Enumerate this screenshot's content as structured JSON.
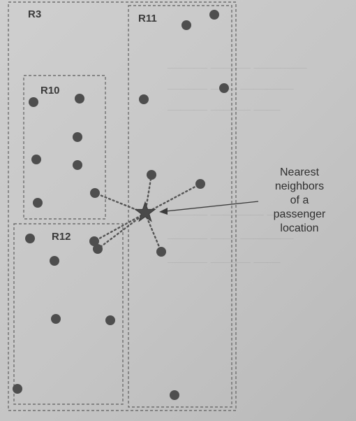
{
  "regions": [
    {
      "id": "R3",
      "label": "R3"
    },
    {
      "id": "R10",
      "label": "R10"
    },
    {
      "id": "R11",
      "label": "R11"
    },
    {
      "id": "R12",
      "label": "R12"
    }
  ],
  "annotation": {
    "lines": [
      "Nearest",
      "neighbors",
      "of a",
      "passenger",
      "location"
    ]
  },
  "colors": {
    "point": "#4e4e4e",
    "star": "#4a4a4a",
    "dashed_border": "#6e6e6e",
    "text": "#333333"
  },
  "icons": {
    "passenger": "star-icon",
    "driver": "dot-icon"
  }
}
